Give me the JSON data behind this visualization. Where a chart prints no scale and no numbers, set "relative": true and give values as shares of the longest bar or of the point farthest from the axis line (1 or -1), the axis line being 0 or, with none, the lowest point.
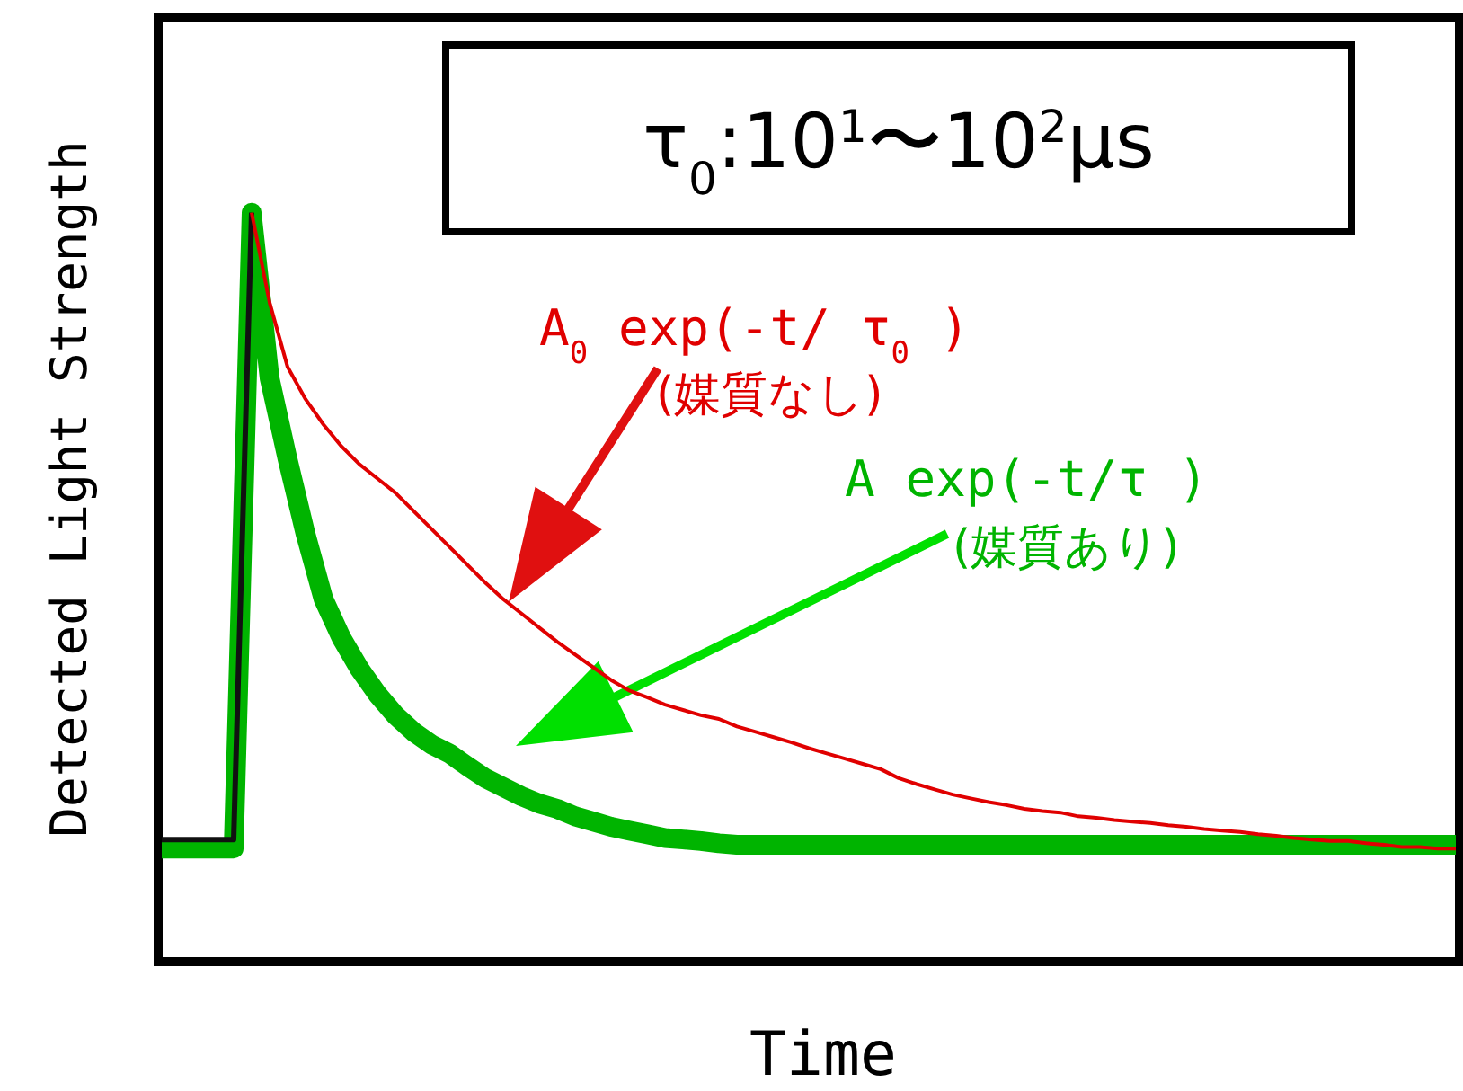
{
  "chart_data": {
    "type": "line",
    "relative": true,
    "tick_labels": false,
    "title": "τ$_{0}$:10$^{1}$〜10$^{2}$μs",
    "xlabel": "Time",
    "ylabel": "Detected Light Strength",
    "annotations": [
      "A$_{0}$ exp(-t/ τ$_{0}$ )",
      "(媒質なし)",
      "A exp(-t/τ )",
      "(媒質あり)"
    ],
    "categories": [
      null,
      null,
      null,
      null,
      null,
      null,
      null,
      null,
      null,
      null,
      null,
      null,
      null,
      null,
      null,
      null,
      null,
      null,
      null,
      null,
      null,
      null,
      null,
      null,
      null,
      null,
      null,
      null,
      null,
      null,
      null,
      null,
      null,
      null,
      null,
      null,
      null,
      null,
      null,
      null,
      null,
      null,
      null,
      null,
      null,
      null,
      null,
      null,
      null,
      null,
      null,
      null,
      null,
      null,
      null,
      null,
      null,
      null,
      null,
      null,
      null,
      null,
      null,
      null,
      null,
      null,
      null,
      null,
      null,
      null,
      null,
      null,
      null
    ],
    "series": [
      {
        "color": "#111111",
        "values": [
          0.163,
          0.163,
          0.163,
          0.163,
          0.163,
          1,
          null,
          null,
          null,
          null,
          null,
          null,
          null,
          null,
          null,
          null,
          null,
          null,
          null,
          null,
          null,
          null,
          null,
          null,
          null,
          null,
          null,
          null,
          null,
          null,
          null,
          null,
          null,
          null,
          null,
          null,
          null,
          null,
          null,
          null,
          null,
          null,
          null,
          null,
          null,
          null,
          null,
          null,
          null,
          null,
          null,
          null,
          null,
          null,
          null,
          null,
          null,
          null,
          null,
          null,
          null,
          null,
          null,
          null,
          null,
          null,
          null,
          null,
          null,
          null,
          null,
          null,
          null
        ]
      },
      {
        "color": "#e00000",
        "values": [
          null,
          null,
          null,
          null,
          null,
          1,
          0.88,
          0.794,
          0.751,
          0.717,
          0.688,
          0.664,
          0.645,
          0.626,
          0.602,
          0.578,
          0.554,
          0.53,
          0.506,
          0.484,
          0.465,
          0.446,
          0.427,
          0.41,
          0.393,
          0.376,
          0.362,
          0.353,
          0.343,
          0.336,
          0.329,
          0.324,
          0.314,
          0.307,
          0.3,
          0.293,
          0.285,
          0.278,
          0.271,
          0.264,
          0.257,
          0.245,
          0.237,
          0.23,
          0.223,
          0.218,
          0.213,
          0.209,
          0.204,
          0.201,
          0.199,
          0.194,
          0.192,
          0.189,
          0.187,
          0.185,
          0.182,
          0.18,
          0.177,
          0.175,
          0.173,
          0.17,
          0.168,
          0.165,
          0.163,
          0.161,
          0.161,
          0.158,
          0.156,
          0.153,
          0.153,
          0.151,
          0.151
        ]
      },
      {
        "color": "#00b400",
        "values": [
          0.151,
          0.151,
          0.151,
          0.151,
          0.151,
          1,
          0.779,
          0.671,
          0.571,
          0.484,
          0.432,
          0.391,
          0.357,
          0.329,
          0.307,
          0.29,
          0.278,
          0.261,
          0.245,
          0.233,
          0.221,
          0.211,
          0.204,
          0.194,
          0.187,
          0.18,
          0.175,
          0.17,
          0.165,
          0.163,
          0.161,
          0.158,
          0.156,
          0.156,
          0.156,
          0.156,
          0.156,
          0.156,
          0.156,
          0.156,
          0.156,
          0.156,
          0.156,
          0.156,
          0.156,
          0.156,
          0.156,
          0.156,
          0.156,
          0.156,
          0.156,
          0.156,
          0.156,
          0.156,
          0.156,
          0.156,
          0.156,
          0.156,
          0.156,
          0.156,
          0.156,
          0.156,
          0.156,
          0.156,
          0.156,
          0.156,
          0.156,
          0.156,
          0.156,
          0.156,
          0.156,
          0.156,
          0.156
        ]
      }
    ]
  }
}
